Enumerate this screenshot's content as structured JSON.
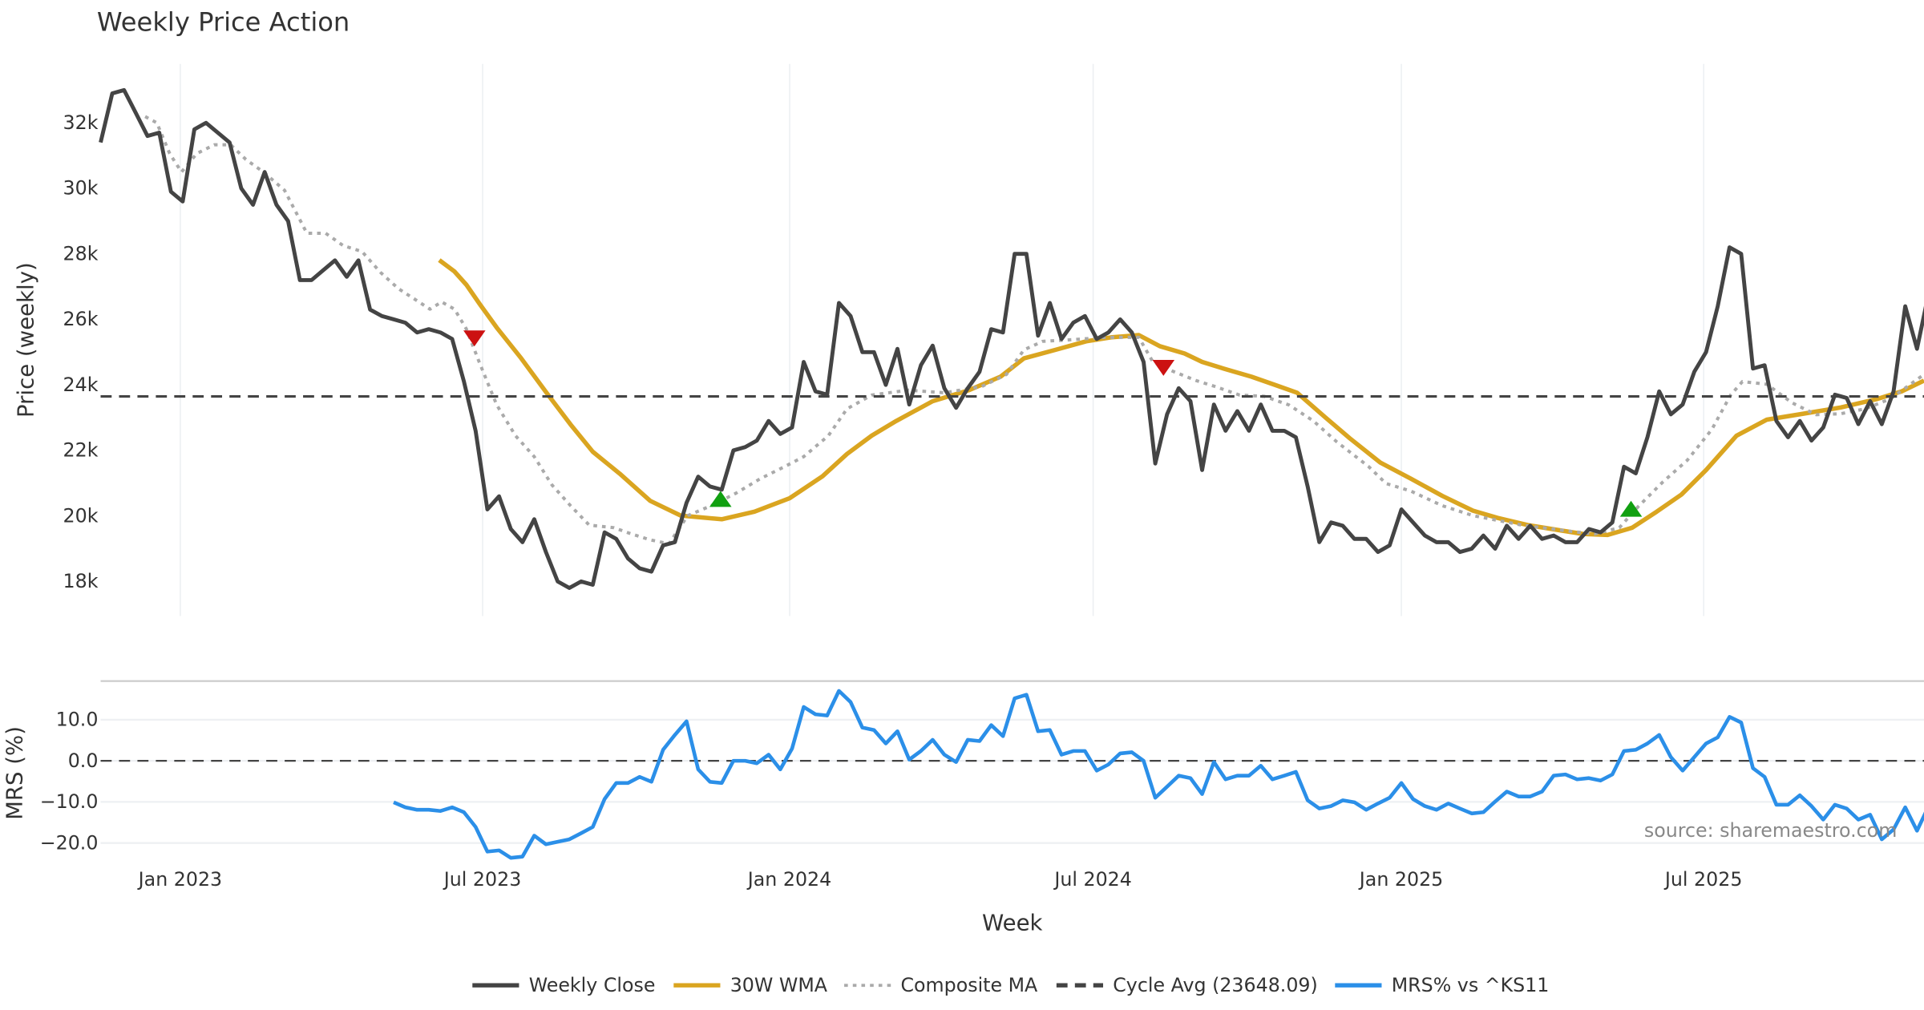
{
  "chart_data": [
    {
      "type": "line",
      "title": "Weekly Price Action",
      "ylabel": "Price (weekly)",
      "xlabel": "Week",
      "x_unit": "week index (0 = mid-Nov 2022)",
      "ylim": [
        17000,
        34000
      ],
      "y_ticks": [
        {
          "v": 18000,
          "label": "18k"
        },
        {
          "v": 20000,
          "label": "20k"
        },
        {
          "v": 22000,
          "label": "22k"
        },
        {
          "v": 24000,
          "label": "24k"
        },
        {
          "v": 26000,
          "label": "26k"
        },
        {
          "v": 28000,
          "label": "28k"
        },
        {
          "v": 30000,
          "label": "30k"
        },
        {
          "v": 32000,
          "label": "32k"
        }
      ],
      "x_ticks": [
        {
          "week": 6.8,
          "label": "Jan 2023"
        },
        {
          "week": 32.6,
          "label": "Jul 2023"
        },
        {
          "week": 58.8,
          "label": "Jan 2024"
        },
        {
          "week": 84.7,
          "label": "Jul 2024"
        },
        {
          "week": 111.0,
          "label": "Jan 2025"
        },
        {
          "week": 136.8,
          "label": "Jul 2025"
        }
      ],
      "grid": "vertical",
      "series": [
        {
          "name": "Weekly Close",
          "color": "#444444",
          "style": "solid",
          "start_week": 0,
          "values": [
            31.4,
            32.9,
            33.0,
            32.3,
            31.6,
            31.7,
            29.9,
            29.6,
            31.8,
            32.0,
            31.7,
            31.4,
            30.0,
            29.5,
            30.5,
            29.5,
            29.0,
            27.2,
            27.2,
            27.5,
            27.8,
            27.3,
            27.8,
            26.3,
            26.1,
            26.0,
            25.9,
            25.6,
            25.7,
            25.6,
            25.4,
            24.1,
            22.6,
            20.2,
            20.6,
            19.6,
            19.2,
            19.9,
            18.9,
            18.0,
            17.8,
            18.0,
            17.9,
            19.5,
            19.3,
            18.7,
            18.4,
            18.3,
            19.1,
            19.2,
            20.4,
            21.2,
            20.9,
            20.8,
            22.0,
            22.1,
            22.3,
            22.9,
            22.5,
            22.7,
            24.7,
            23.8,
            23.7,
            26.5,
            26.1,
            25.0,
            25.0,
            24.0,
            25.1,
            23.4,
            24.6,
            25.2,
            23.9,
            23.3,
            23.9,
            24.4,
            25.7,
            25.6,
            28.0,
            28.0,
            25.5,
            26.5,
            25.4,
            25.9,
            26.1,
            25.4,
            25.6,
            26.0,
            25.6,
            24.7,
            21.6,
            23.1,
            23.9,
            23.5,
            21.4,
            23.4,
            22.6,
            23.2,
            22.6,
            23.4,
            22.6,
            22.6,
            22.4,
            20.9,
            19.2,
            19.8,
            19.7,
            19.3,
            19.3,
            18.9,
            19.1,
            20.2,
            19.8,
            19.4,
            19.2,
            19.2,
            18.9,
            19.0,
            19.4,
            19.0,
            19.7,
            19.3,
            19.7,
            19.3,
            19.4,
            19.2,
            19.2,
            19.6,
            19.5,
            19.8,
            21.5,
            21.3,
            22.4,
            23.8,
            23.1,
            23.4,
            24.4,
            25.0,
            26.4,
            28.2,
            28.0,
            24.5,
            24.6,
            22.9,
            22.4,
            22.9,
            22.3,
            22.7,
            23.7,
            23.6,
            22.8,
            23.5,
            22.8,
            23.8,
            26.4,
            25.1,
            26.8
          ],
          "value_scale": 1000
        },
        {
          "name": "30W WMA",
          "color": "#DAA520",
          "style": "solid",
          "points": [
            [
              28.9,
              27.81
            ],
            [
              30.2,
              27.46
            ],
            [
              31.2,
              27.06
            ],
            [
              32.3,
              26.49
            ],
            [
              33.8,
              25.75
            ],
            [
              35.9,
              24.81
            ],
            [
              38.2,
              23.69
            ],
            [
              40.1,
              22.79
            ],
            [
              42.0,
              21.96
            ],
            [
              44.3,
              21.29
            ],
            [
              46.9,
              20.46
            ],
            [
              49.5,
              20.01
            ],
            [
              53.0,
              19.9
            ],
            [
              55.8,
              20.13
            ],
            [
              58.8,
              20.54
            ],
            [
              61.6,
              21.21
            ],
            [
              63.7,
              21.89
            ],
            [
              65.8,
              22.45
            ],
            [
              67.9,
              22.9
            ],
            [
              71.0,
              23.5
            ],
            [
              74.1,
              23.84
            ],
            [
              76.8,
              24.25
            ],
            [
              78.8,
              24.81
            ],
            [
              81.5,
              25.07
            ],
            [
              84.1,
              25.33
            ],
            [
              86.2,
              25.45
            ],
            [
              88.6,
              25.52
            ],
            [
              90.4,
              25.18
            ],
            [
              92.5,
              24.96
            ],
            [
              94.0,
              24.7
            ],
            [
              96.1,
              24.47
            ],
            [
              98.2,
              24.25
            ],
            [
              100.3,
              23.99
            ],
            [
              102.1,
              23.76
            ],
            [
              104.5,
              23.01
            ],
            [
              106.6,
              22.37
            ],
            [
              109.2,
              21.63
            ],
            [
              111.8,
              21.14
            ],
            [
              114.5,
              20.61
            ],
            [
              117.1,
              20.16
            ],
            [
              119.2,
              19.94
            ],
            [
              121.8,
              19.72
            ],
            [
              124.4,
              19.57
            ],
            [
              126.5,
              19.45
            ],
            [
              128.6,
              19.42
            ],
            [
              130.7,
              19.64
            ],
            [
              132.8,
              20.13
            ],
            [
              134.9,
              20.65
            ],
            [
              137.0,
              21.4
            ],
            [
              139.6,
              22.45
            ],
            [
              142.2,
              22.94
            ],
            [
              145.3,
              23.12
            ],
            [
              148.5,
              23.31
            ],
            [
              151.6,
              23.57
            ],
            [
              153.7,
              23.8
            ],
            [
              155.6,
              24.13
            ]
          ],
          "value_scale": 1000
        },
        {
          "name": "Composite MA",
          "color": "#AAAAAA",
          "style": "dotted",
          "points": [
            [
              3.8,
              32.19
            ],
            [
              4.8,
              32.0
            ],
            [
              5.9,
              31.06
            ],
            [
              6.9,
              30.5
            ],
            [
              8.2,
              31.06
            ],
            [
              9.7,
              31.33
            ],
            [
              11.1,
              31.33
            ],
            [
              12.4,
              30.88
            ],
            [
              13.9,
              30.5
            ],
            [
              15.7,
              29.94
            ],
            [
              17.6,
              28.63
            ],
            [
              19.2,
              28.63
            ],
            [
              20.7,
              28.25
            ],
            [
              22.3,
              28.07
            ],
            [
              23.9,
              27.43
            ],
            [
              25.4,
              26.94
            ],
            [
              27.0,
              26.57
            ],
            [
              28.1,
              26.31
            ],
            [
              29.1,
              26.53
            ],
            [
              30.2,
              26.31
            ],
            [
              31.2,
              25.71
            ],
            [
              32.3,
              24.7
            ],
            [
              33.8,
              23.39
            ],
            [
              35.4,
              22.45
            ],
            [
              37.0,
              21.81
            ],
            [
              38.5,
              20.95
            ],
            [
              40.1,
              20.31
            ],
            [
              41.7,
              19.72
            ],
            [
              43.8,
              19.64
            ],
            [
              45.3,
              19.45
            ],
            [
              46.9,
              19.27
            ],
            [
              48.5,
              19.15
            ],
            [
              50.1,
              20.01
            ],
            [
              52.1,
              20.31
            ],
            [
              54.2,
              20.69
            ],
            [
              56.3,
              21.14
            ],
            [
              58.4,
              21.51
            ],
            [
              60.0,
              21.81
            ],
            [
              62.1,
              22.45
            ],
            [
              63.7,
              23.27
            ],
            [
              65.8,
              23.69
            ],
            [
              68.9,
              23.84
            ],
            [
              72.0,
              23.76
            ],
            [
              75.2,
              23.95
            ],
            [
              77.3,
              24.32
            ],
            [
              78.8,
              25.07
            ],
            [
              80.4,
              25.33
            ],
            [
              82.5,
              25.37
            ],
            [
              85.7,
              25.45
            ],
            [
              88.6,
              25.45
            ],
            [
              89.8,
              24.7
            ],
            [
              91.4,
              24.43
            ],
            [
              93.5,
              24.13
            ],
            [
              95.1,
              23.95
            ],
            [
              97.2,
              23.69
            ],
            [
              99.3,
              23.65
            ],
            [
              101.4,
              23.39
            ],
            [
              103.5,
              22.9
            ],
            [
              105.5,
              22.26
            ],
            [
              108.2,
              21.51
            ],
            [
              109.7,
              20.99
            ],
            [
              111.8,
              20.76
            ],
            [
              114.5,
              20.31
            ],
            [
              117.1,
              20.01
            ],
            [
              121.3,
              19.72
            ],
            [
              125.4,
              19.53
            ],
            [
              127.5,
              19.45
            ],
            [
              129.6,
              19.64
            ],
            [
              131.2,
              20.28
            ],
            [
              133.3,
              21.03
            ],
            [
              135.4,
              21.7
            ],
            [
              137.5,
              22.64
            ],
            [
              139.1,
              23.69
            ],
            [
              140.1,
              24.1
            ],
            [
              142.2,
              24.02
            ],
            [
              144.3,
              23.46
            ],
            [
              146.4,
              23.09
            ],
            [
              148.5,
              23.12
            ],
            [
              150.6,
              23.27
            ],
            [
              152.7,
              23.57
            ],
            [
              155.6,
              24.32
            ]
          ],
          "value_scale": 1000
        },
        {
          "name": "Cycle Avg (23648.09)",
          "color": "#444444",
          "style": "dashed",
          "value": 23648.09
        }
      ],
      "signals": [
        {
          "type": "sell",
          "week": 31.9,
          "value": 25400,
          "color": "#CC1111"
        },
        {
          "type": "buy",
          "week": 52.9,
          "value": 20500,
          "color": "#11A011"
        },
        {
          "type": "sell",
          "week": 90.7,
          "value": 24500,
          "color": "#CC1111"
        },
        {
          "type": "buy",
          "week": 130.6,
          "value": 20200,
          "color": "#11A011"
        }
      ]
    },
    {
      "type": "line",
      "ylabel": "MRS (%)",
      "ylim": [
        -25,
        20
      ],
      "y_ticks": [
        {
          "v": 10,
          "label": "10.0"
        },
        {
          "v": 0,
          "label": "0.0"
        },
        {
          "v": -10,
          "label": "−10.0"
        },
        {
          "v": -20,
          "label": "−20.0"
        }
      ],
      "grid": "horizontal",
      "zero_line": 0,
      "series": [
        {
          "name": "MRS% vs ^KS11",
          "color": "#2B8FE8",
          "style": "solid",
          "start_week": 25,
          "values": [
            -10.1,
            -11.3,
            -11.9,
            -11.9,
            -12.2,
            -11.3,
            -12.5,
            -16.1,
            -22.1,
            -21.8,
            -23.6,
            -23.3,
            -18.2,
            -20.3,
            -19.7,
            -19.1,
            -17.6,
            -16.1,
            -9.3,
            -5.4,
            -5.4,
            -3.9,
            -5.1,
            2.7,
            6.3,
            9.6,
            -2.1,
            -5.1,
            -5.4,
            0,
            0,
            -0.6,
            1.5,
            -2.1,
            3.0,
            13.1,
            11.3,
            11.0,
            17.0,
            14.3,
            8.1,
            7.5,
            4.2,
            7.2,
            0.3,
            2.4,
            5.1,
            1.5,
            -0.3,
            5.1,
            4.8,
            8.7,
            6.0,
            15.2,
            16.1,
            7.2,
            7.5,
            1.5,
            2.4,
            2.4,
            -2.4,
            -0.9,
            1.8,
            2.1,
            0,
            -9.0,
            -6.3,
            -3.6,
            -4.2,
            -8.1,
            -0.3,
            -4.5,
            -3.6,
            -3.6,
            -1.2,
            -4.5,
            -3.6,
            -2.7,
            -9.6,
            -11.6,
            -11.0,
            -9.6,
            -10.1,
            -11.9,
            -10.4,
            -9.0,
            -5.4,
            -9.3,
            -11.0,
            -11.9,
            -10.4,
            -11.6,
            -12.8,
            -12.5,
            -9.9,
            -7.5,
            -8.7,
            -8.7,
            -7.5,
            -3.6,
            -3.3,
            -4.5,
            -4.2,
            -4.8,
            -3.3,
            2.4,
            2.7,
            4.2,
            6.3,
            0.9,
            -2.4,
            0.9,
            4.2,
            5.7,
            10.7,
            9.3,
            -1.8,
            -3.9,
            -10.7,
            -10.7,
            -8.4,
            -11.0,
            -14.3,
            -10.7,
            -11.6,
            -14.3,
            -13.1,
            -19.1,
            -16.7,
            -11.3,
            -17.0,
            -11.0
          ]
        }
      ],
      "annotation": "source: sharemaestro.com"
    }
  ],
  "legend": [
    {
      "label": "Weekly Close",
      "color": "#444444",
      "style": "solid"
    },
    {
      "label": "30W WMA",
      "color": "#DAA520",
      "style": "solid"
    },
    {
      "label": "Composite MA",
      "color": "#AAAAAA",
      "style": "dotted"
    },
    {
      "label": "Cycle Avg (23648.09)",
      "color": "#444444",
      "style": "dashed"
    },
    {
      "label": "MRS% vs ^KS11",
      "color": "#2B8FE8",
      "style": "solid"
    }
  ]
}
